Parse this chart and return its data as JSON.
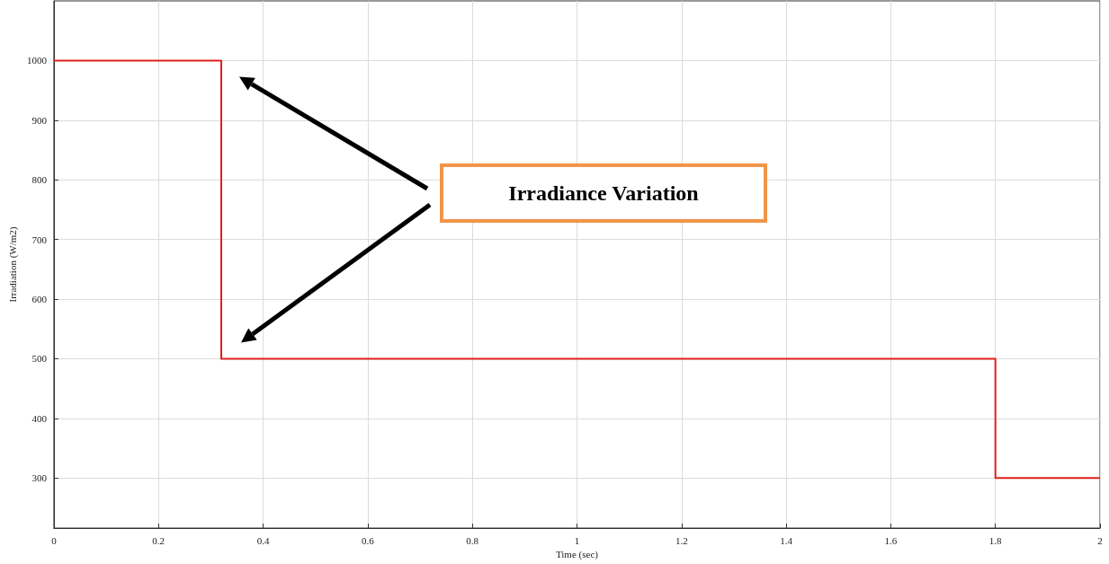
{
  "chart_data": {
    "type": "step",
    "xlabel": "Time (sec)",
    "ylabel": "Irradiation (W/m2)",
    "annotations": [
      "Irradiance Variation"
    ],
    "x": [
      0,
      0.32,
      1.8,
      2
    ],
    "series": [
      {
        "color": "#e0201b",
        "values": [
          1000,
          500,
          300,
          300
        ]
      }
    ],
    "xlim": [
      0,
      2
    ],
    "xticks": [
      0,
      0.2,
      0.4,
      0.6,
      0.8,
      1,
      1.2,
      1.4,
      1.6,
      1.8,
      2
    ],
    "ylim": [
      216,
      1100
    ],
    "yticks": [
      300,
      400,
      500,
      600,
      700,
      800,
      900,
      1000
    ],
    "grid": true
  }
}
